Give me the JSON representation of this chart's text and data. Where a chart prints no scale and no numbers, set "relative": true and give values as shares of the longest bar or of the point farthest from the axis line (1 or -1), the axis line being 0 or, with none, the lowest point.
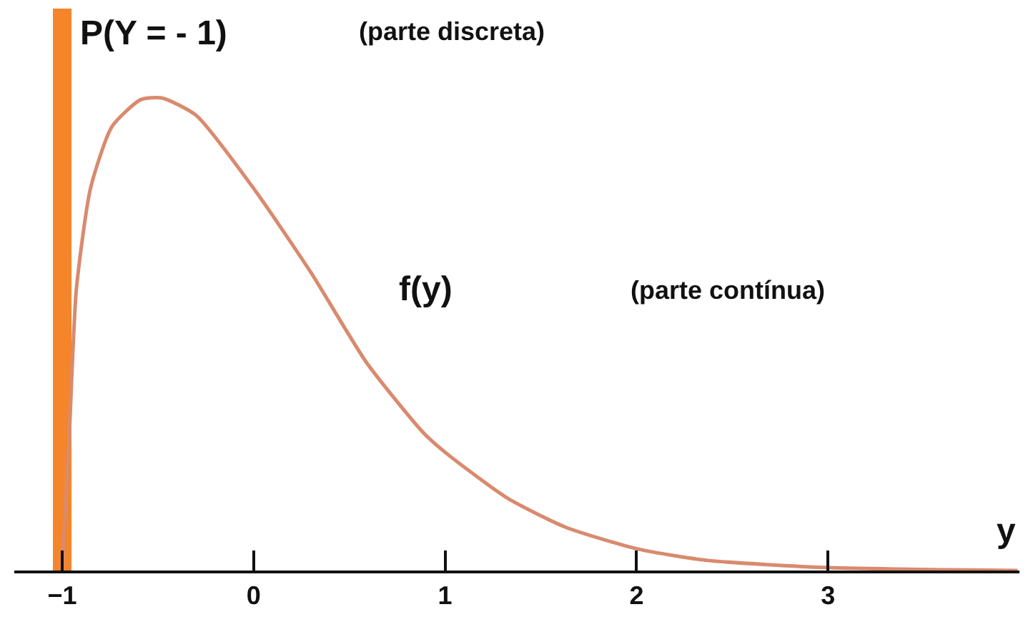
{
  "chart_data": {
    "type": "line",
    "relative": true,
    "xlabel": "y",
    "xlim": [
      -1.25,
      4.0
    ],
    "xticks": [
      {
        "value": -1,
        "label": "−1"
      },
      0,
      1,
      2,
      3
    ],
    "series": [
      {
        "type": "bar",
        "name": "P(Y = - 1)",
        "color": "#f5852a",
        "x": [
          -1
        ],
        "values": [
          1
        ]
      },
      {
        "name": "f(y)",
        "color": "#d98a6e",
        "x": [
          -1,
          -0.963,
          -0.926,
          -0.852,
          -0.74,
          -0.59,
          -0.48,
          -0.3,
          0,
          0.3,
          0.59,
          0.89,
          1.02,
          1.33,
          1.63,
          2.01,
          2.37,
          3.01,
          3.99
        ],
        "values": [
          0,
          0.24,
          0.5,
          0.68,
          0.79,
          0.838,
          0.841,
          0.81,
          0.68,
          0.53,
          0.37,
          0.244,
          0.205,
          0.128,
          0.077,
          0.038,
          0.018,
          0.005,
          0
        ]
      }
    ],
    "annotations": [
      "(parte discreta)",
      "(parte contínua)"
    ],
    "grid": false,
    "legend": false,
    "marker": "none",
    "line_style": "solid"
  }
}
